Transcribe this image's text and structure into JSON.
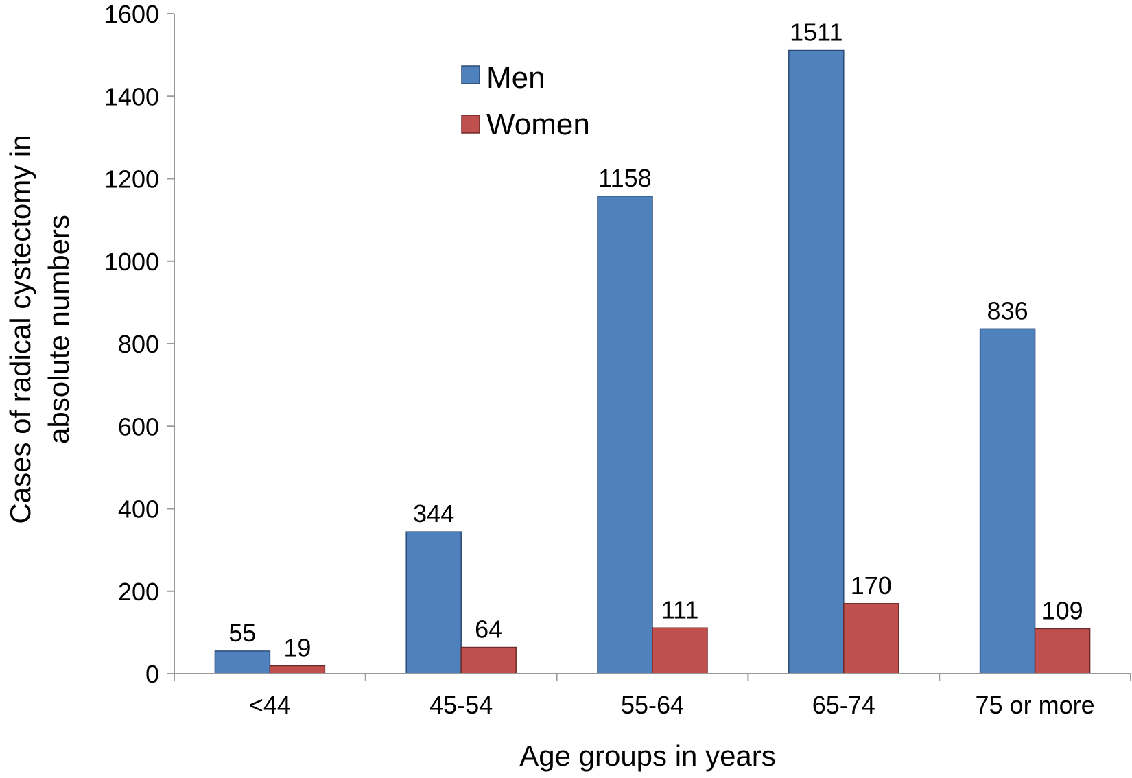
{
  "chart_data": {
    "type": "bar",
    "categories": [
      "<44",
      "45-54",
      "55-64",
      "65-74",
      "75 or more"
    ],
    "series": [
      {
        "name": "Men",
        "values": [
          55,
          344,
          1158,
          1511,
          836
        ],
        "color": "#4f81bd"
      },
      {
        "name": "Women",
        "values": [
          19,
          64,
          111,
          170,
          109
        ],
        "color": "#c0504d"
      }
    ],
    "xlabel": "Age groups in years",
    "ylabel_lines": [
      "Cases of radical cystectomy in",
      "absolute numbers"
    ],
    "ylim": [
      0,
      1600
    ],
    "yticks": [
      0,
      200,
      400,
      600,
      800,
      1000,
      1200,
      1400,
      1600
    ],
    "grid": false,
    "legend_position": "top-center",
    "data_labels": true
  }
}
